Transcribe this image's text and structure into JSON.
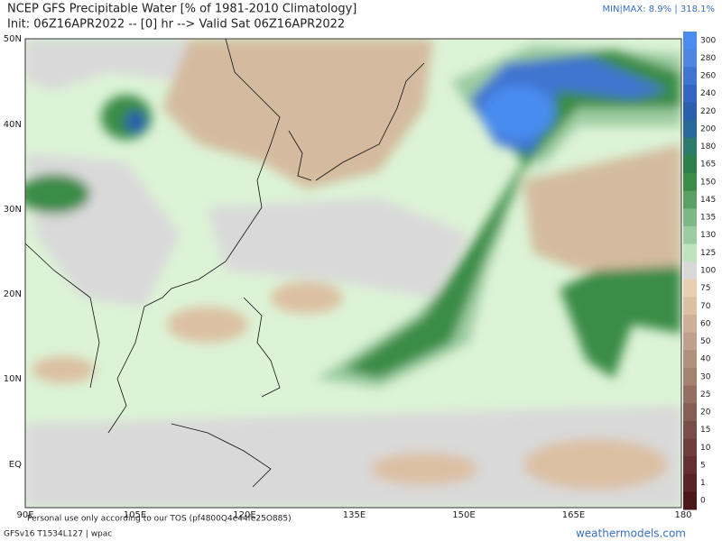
{
  "header": {
    "title": "NCEP GFS Precipitable Water [% of 1981-2010 Climatology]",
    "subtitle": "Init: 06Z16APR2022 -- [0] hr --> Valid Sat 06Z16APR2022",
    "minmax": "MIN|MAX: 8.9% | 318.1%"
  },
  "map": {
    "lat_labels": [
      "50N",
      "40N",
      "30N",
      "20N",
      "10N",
      "EQ"
    ],
    "lon_labels": [
      "90E",
      "105E",
      "120E",
      "135E",
      "150E",
      "165E",
      "180"
    ]
  },
  "colorbar": {
    "levels": [
      "300",
      "280",
      "260",
      "240",
      "220",
      "200",
      "180",
      "165",
      "150",
      "145",
      "135",
      "130",
      "125",
      "100",
      "75",
      "70",
      "60",
      "50",
      "40",
      "30",
      "25",
      "20",
      "15",
      "10",
      "5",
      "1",
      "0"
    ],
    "colors": [
      "#4a8cf0",
      "#4f86e0",
      "#3f74d0",
      "#3366c2",
      "#2a5fae",
      "#2a6a9a",
      "#2b7a6a",
      "#2e8048",
      "#3a8c46",
      "#5aa064",
      "#7cb884",
      "#9ccca0",
      "#bfe3bd",
      "#d8d8d8",
      "#e8cfb2",
      "#dcc0a2",
      "#cdb096",
      "#bfa08a",
      "#b0927c",
      "#a2836e",
      "#946f60",
      "#875e54",
      "#7a4e48",
      "#6e3e3c",
      "#623030",
      "#562424",
      "#4a1818"
    ]
  },
  "footer": {
    "notice": "Personal use only according to our TOS (pf4800Q4e44fe25O885)",
    "model": "GFSv16 T1534L127 | wpac",
    "site": "weathermodels.com"
  }
}
